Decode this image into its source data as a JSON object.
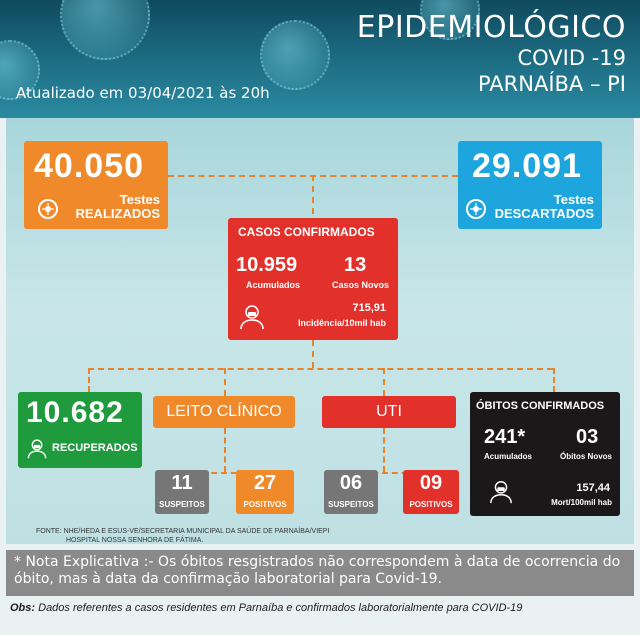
{
  "header": {
    "title_line1": "EPIDEMIOLÓGICO",
    "title_line2": "COVID -19",
    "title_line3": "PARNAÍBA – PI",
    "updated": "Atualizado em 03/04/2021 às 20h"
  },
  "testes": {
    "value": "40.050",
    "label1": "Testes",
    "label2": "REALIZADOS"
  },
  "descartados": {
    "value": "29.091",
    "label1": "Testes",
    "label2": "DESCARTADOS"
  },
  "confirmados": {
    "title": "CASOS CONFIRMADOS",
    "acumulados_value": "10.959",
    "acumulados_label": "Acumulados",
    "novos_value": "13",
    "novos_label": "Casos Novos",
    "incidencia_value": "715,91",
    "incidencia_label": "Incidência/10mil hab"
  },
  "recuperados": {
    "value": "10.682",
    "label": "RECUPERADOS"
  },
  "leito": {
    "title": "LEITO CLÍNICO",
    "suspeitos_value": "11",
    "suspeitos_label": "SUSPEITOS",
    "positivos_value": "27",
    "positivos_label": "POSITIVOS"
  },
  "uti": {
    "title": "UTI",
    "suspeitos_value": "06",
    "suspeitos_label": "SUSPEITOS",
    "positivos_value": "09",
    "positivos_label": "POSITIVOS"
  },
  "obitos": {
    "title": "ÓBITOS CONFIRMADOS",
    "acumulados_value": "241*",
    "acumulados_label": "Acumulados",
    "novos_value": "03",
    "novos_label": "Óbitos Novos",
    "mort_value": "157,44",
    "mort_label": "Mort/100mil hab"
  },
  "fonte": {
    "line1": "FONTE: NHE/HEDA E ESUS-VE/SECRETARIA MUNICIPAL DA SAÚDE DE PARNAÍBA/VIEPI",
    "line2": "HOSPITAL NOSSA SENHORA DE FÁTIMA."
  },
  "note": "* Nota Explicativa :- Os óbitos resgistrados não correspondem à data de ocorrencia do óbito, mas à data da confirmação laboratorial para Covid-19.",
  "obs": {
    "label": "Obs:",
    "text": "Dados referentes a casos residentes em Parnaíba e confirmados laboratorialmente para COVID-19"
  },
  "colors": {
    "orange": "#f0892a",
    "blue": "#1ea5de",
    "red": "#e2302b",
    "green": "#1f9a3d",
    "grey": "#767676",
    "black": "#1a1818"
  },
  "icons": [
    "drop-virus-icon",
    "person-mask-icon"
  ]
}
